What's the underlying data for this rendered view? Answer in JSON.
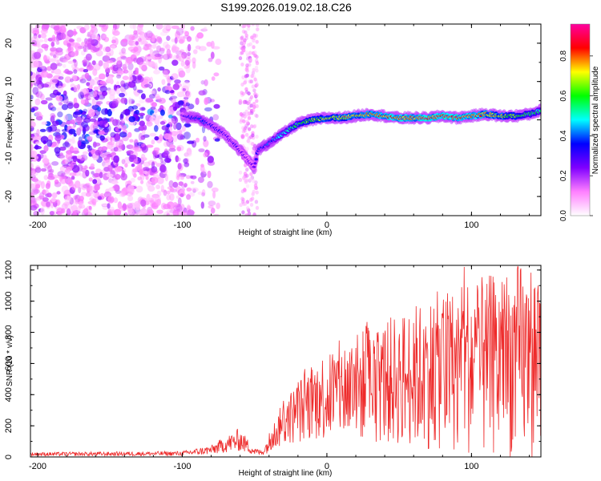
{
  "title": "S199.2026.019.02.18.C26",
  "chart_data": [
    {
      "type": "heatmap",
      "name": "spectrogram",
      "xlabel": "Height of straight line (km)",
      "ylabel": "Frequency (Hz)",
      "xlim": [
        -205,
        148
      ],
      "ylim": [
        -25,
        25
      ],
      "xticks": [
        -200,
        -100,
        0,
        100
      ],
      "yticks": [
        -20,
        -10,
        0,
        10,
        20
      ],
      "colorbar": {
        "label": "Normalized spectral amplitude",
        "range": [
          0,
          0.96
        ],
        "ticks": [
          0.0,
          0.2,
          0.4,
          0.6,
          0.8
        ],
        "colors": [
          "#ffffff",
          "#ff80ff",
          "#7f00ff",
          "#0000ff",
          "#00ffff",
          "#00ff00",
          "#ffff00",
          "#ff0000",
          "#ff00a0"
        ]
      },
      "ridge": {
        "x": [
          -100,
          -90,
          -80,
          -70,
          -60,
          -50,
          -48,
          -40,
          -30,
          -20,
          -10,
          0,
          10,
          20,
          30,
          40,
          50,
          60,
          70,
          80,
          90,
          100,
          110,
          120,
          130,
          140,
          148
        ],
        "y": [
          1,
          0.5,
          -1.5,
          -4,
          -8,
          -12.5,
          -8,
          -6,
          -3.5,
          -1,
          0,
          0.5,
          0.5,
          1,
          1.5,
          1,
          0.5,
          0.5,
          0.5,
          1,
          0.5,
          1,
          1.5,
          1,
          1,
          1.5,
          2.5
        ],
        "amplitude": [
          0.3,
          0.4,
          0.35,
          0.3,
          0.28,
          0.25,
          0.35,
          0.4,
          0.5,
          0.6,
          0.7,
          0.72,
          0.75,
          0.78,
          0.8,
          0.82,
          0.85,
          0.85,
          0.88,
          0.88,
          0.88,
          0.85,
          0.8,
          0.75,
          0.65,
          0.6,
          0.55
        ]
      }
    },
    {
      "type": "line",
      "name": "snr",
      "xlabel": "Height of straight line (km)",
      "ylabel": "SNR (10 * v/v)",
      "xlim": [
        -205,
        148
      ],
      "ylim": [
        0,
        1230
      ],
      "xticks": [
        -200,
        -100,
        0,
        100
      ],
      "yticks": [
        0,
        200,
        400,
        600,
        800,
        1000,
        1200
      ],
      "color": "#ee2a2a",
      "envelope": {
        "x": [
          -205,
          -150,
          -100,
          -80,
          -70,
          -60,
          -55,
          -50,
          -45,
          -38,
          -30,
          -20,
          -10,
          0,
          10,
          20,
          30,
          40,
          50,
          60,
          70,
          80,
          90,
          95,
          100,
          110,
          120,
          130,
          140,
          148
        ],
        "y": [
          20,
          22,
          25,
          50,
          90,
          120,
          80,
          40,
          30,
          120,
          220,
          290,
          360,
          400,
          430,
          450,
          470,
          480,
          500,
          520,
          540,
          560,
          560,
          600,
          580,
          580,
          600,
          620,
          630,
          600
        ]
      },
      "peaks": {
        "x": [
          -62,
          -30,
          -20,
          -10,
          20,
          40,
          60,
          67,
          80,
          95,
          100,
          105,
          112,
          122,
          134,
          140,
          146
        ],
        "y": [
          180,
          360,
          480,
          560,
          700,
          780,
          860,
          820,
          920,
          1220,
          900,
          960,
          980,
          950,
          1210,
          940,
          1100
        ]
      }
    }
  ]
}
